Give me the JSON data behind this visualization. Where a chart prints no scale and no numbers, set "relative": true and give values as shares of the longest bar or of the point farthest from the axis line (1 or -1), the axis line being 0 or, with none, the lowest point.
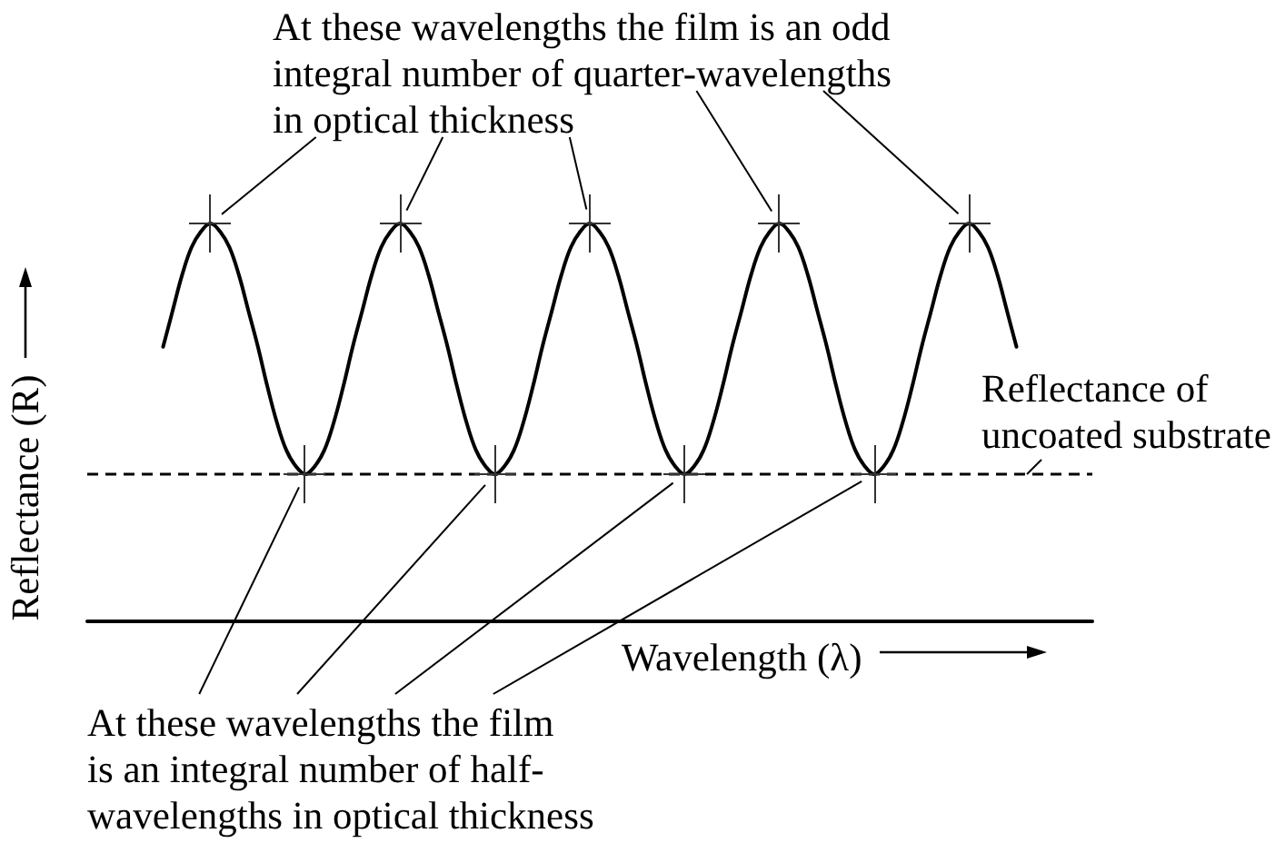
{
  "chart_data": {
    "type": "line",
    "relative": true,
    "xlabel": "Wavelength (λ)",
    "ylabel": "Reflectance (R)",
    "categories": [
      null,
      null,
      null,
      null,
      null,
      null,
      null,
      null,
      null,
      null,
      null,
      null,
      null,
      null,
      null,
      null,
      null,
      null,
      null,
      null,
      null,
      null,
      null,
      null,
      null,
      null,
      null,
      null,
      null,
      null,
      null,
      null,
      null,
      null,
      null,
      null,
      null,
      null,
      null,
      null,
      null,
      null,
      null,
      null,
      null,
      null,
      null,
      null,
      null,
      null,
      null,
      null,
      null,
      null,
      null,
      null,
      null,
      null,
      null,
      null,
      null,
      null,
      null,
      null,
      null,
      null,
      null,
      null,
      null,
      null,
      null,
      null,
      null,
      null,
      null,
      null,
      null,
      null,
      null,
      null,
      null,
      null,
      null,
      null,
      null,
      null,
      null,
      null,
      null,
      null,
      null,
      null,
      null,
      null,
      null,
      null,
      null,
      null,
      null,
      null,
      null,
      null,
      null,
      null,
      null,
      null,
      null
    ],
    "series": [
      {
        "color": "#000000",
        "values": [
          null,
          null,
          null,
          null,
          null,
          null,
          null,
          null,
          0.69,
          0.78,
          0.87,
          0.94,
          0.98,
          1,
          0.98,
          0.94,
          0.87,
          0.78,
          0.69,
          0.59,
          0.5,
          0.43,
          0.39,
          0.37,
          0.39,
          0.43,
          0.5,
          0.59,
          0.69,
          0.78,
          0.87,
          0.94,
          0.98,
          1,
          0.98,
          0.94,
          0.87,
          0.78,
          0.69,
          0.59,
          0.5,
          0.43,
          0.39,
          0.37,
          0.39,
          0.43,
          0.5,
          0.59,
          0.69,
          0.78,
          0.87,
          0.94,
          0.98,
          1,
          0.98,
          0.94,
          0.87,
          0.78,
          0.69,
          0.59,
          0.5,
          0.43,
          0.39,
          0.37,
          0.39,
          0.43,
          0.5,
          0.59,
          0.69,
          0.78,
          0.87,
          0.94,
          0.98,
          1,
          0.98,
          0.94,
          0.87,
          0.78,
          0.69,
          0.59,
          0.5,
          0.43,
          0.39,
          0.37,
          0.39,
          0.43,
          0.5,
          0.59,
          0.69,
          0.78,
          0.87,
          0.94,
          0.98,
          1,
          0.98,
          0.94,
          0.87,
          0.78,
          0.69,
          null,
          null,
          null,
          null,
          null,
          null,
          null,
          null
        ]
      }
    ],
    "ref_lines": [
      {
        "axis": "y",
        "value": 0.37,
        "label": "Reflectance of\nuncoated substrate",
        "line_style": "dashed",
        "color": "#000000"
      }
    ],
    "annotations": [
      "At these wavelengths the film is an odd\nintegral number of quarter-wavelengths\nin optical thickness",
      "At these wavelengths the film\nis an integral number of half-\nwavelengths in optical thickness"
    ]
  }
}
